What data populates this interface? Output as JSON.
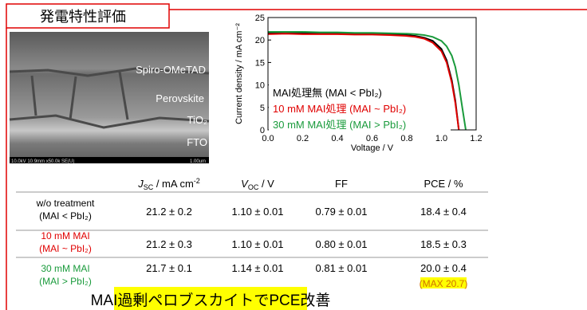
{
  "title": "発電特性評価",
  "image": {
    "labels": [
      "Spiro-OMeTAD",
      "Perovskite",
      "TiO₂",
      "FTO"
    ],
    "info": "10.0kV 10.9mm x50.0k SE(U)",
    "scale": "1.00um"
  },
  "chart_data": {
    "type": "line",
    "xlabel": "Voltage / V",
    "ylabel": "Current density / mA cm⁻²",
    "x": [
      0,
      0.1,
      0.2,
      0.3,
      0.4,
      0.5,
      0.6,
      0.7,
      0.8,
      0.85,
      0.9,
      0.95,
      1.0,
      1.03,
      1.06,
      1.08,
      1.1,
      1.12,
      1.14
    ],
    "series": [
      {
        "name": "MAI処理無 (MAI < PbI₂)",
        "color": "#000000",
        "values": [
          21.5,
          21.6,
          21.5,
          21.5,
          21.4,
          21.4,
          21.4,
          21.3,
          21.1,
          20.9,
          20.5,
          19.8,
          18.0,
          15.5,
          11.0,
          6.5,
          0,
          null,
          null
        ]
      },
      {
        "name": "10 mM MAI処理 (MAI ~ PbI₂)",
        "color": "#e00000",
        "values": [
          21.3,
          21.4,
          21.3,
          21.3,
          21.3,
          21.2,
          21.2,
          21.1,
          20.9,
          20.7,
          20.3,
          19.4,
          17.5,
          15.0,
          10.5,
          6.0,
          0,
          null,
          null
        ]
      },
      {
        "name": "30 mM MAI処理 (MAI > PbI₂)",
        "color": "#1a9b3c",
        "values": [
          21.8,
          21.8,
          21.8,
          21.7,
          21.7,
          21.6,
          21.6,
          21.5,
          21.4,
          21.3,
          21.1,
          20.7,
          19.8,
          18.6,
          16.5,
          14.0,
          10.0,
          5.0,
          0
        ]
      }
    ],
    "xlim": [
      0,
      1.2
    ],
    "ylim": [
      0,
      25
    ],
    "xticks": [
      {
        "value": 0,
        "label": "0.0"
      },
      0.2,
      0.4,
      0.6,
      0.8,
      {
        "value": 1,
        "label": "1.0"
      },
      1.2
    ],
    "yticks": [
      0,
      5,
      10,
      15,
      20,
      25
    ],
    "legend": "lower left"
  },
  "table": {
    "header": [
      {
        "symbol": "J",
        "sub": "SC",
        "unit": " / mA cm",
        "sup": "-2"
      },
      {
        "symbol": "V",
        "sub": "OC",
        "unit": " / V"
      },
      {
        "symbol": "FF"
      },
      {
        "symbol": "PCE / %"
      }
    ],
    "rows": [
      {
        "label": [
          "w/o treatment",
          "(MAI < PbI₂)"
        ],
        "color": "#000000",
        "cells": [
          "21.2 ± 0.2",
          "1.10 ± 0.01",
          "0.79 ± 0.01",
          "18.4 ± 0.4"
        ]
      },
      {
        "label": [
          "10 mM MAI",
          "(MAI ~ PbI₂)"
        ],
        "color": "#e00000",
        "cells": [
          "21.2 ± 0.3",
          "1.10 ± 0.01",
          "0.80 ± 0.01",
          "18.5 ± 0.3"
        ]
      },
      {
        "label": [
          "30 mM MAI",
          "(MAI > PbI₂)"
        ],
        "color": "#1a9b3c",
        "cells": [
          "21.7 ± 0.1",
          "1.14 ± 0.01",
          "0.81 ± 0.01",
          "20.0 ± 0.4"
        ],
        "note": "(MAX 20.7)"
      }
    ]
  },
  "banner": "MAI過剰ペロブスカイトでPCE改善"
}
